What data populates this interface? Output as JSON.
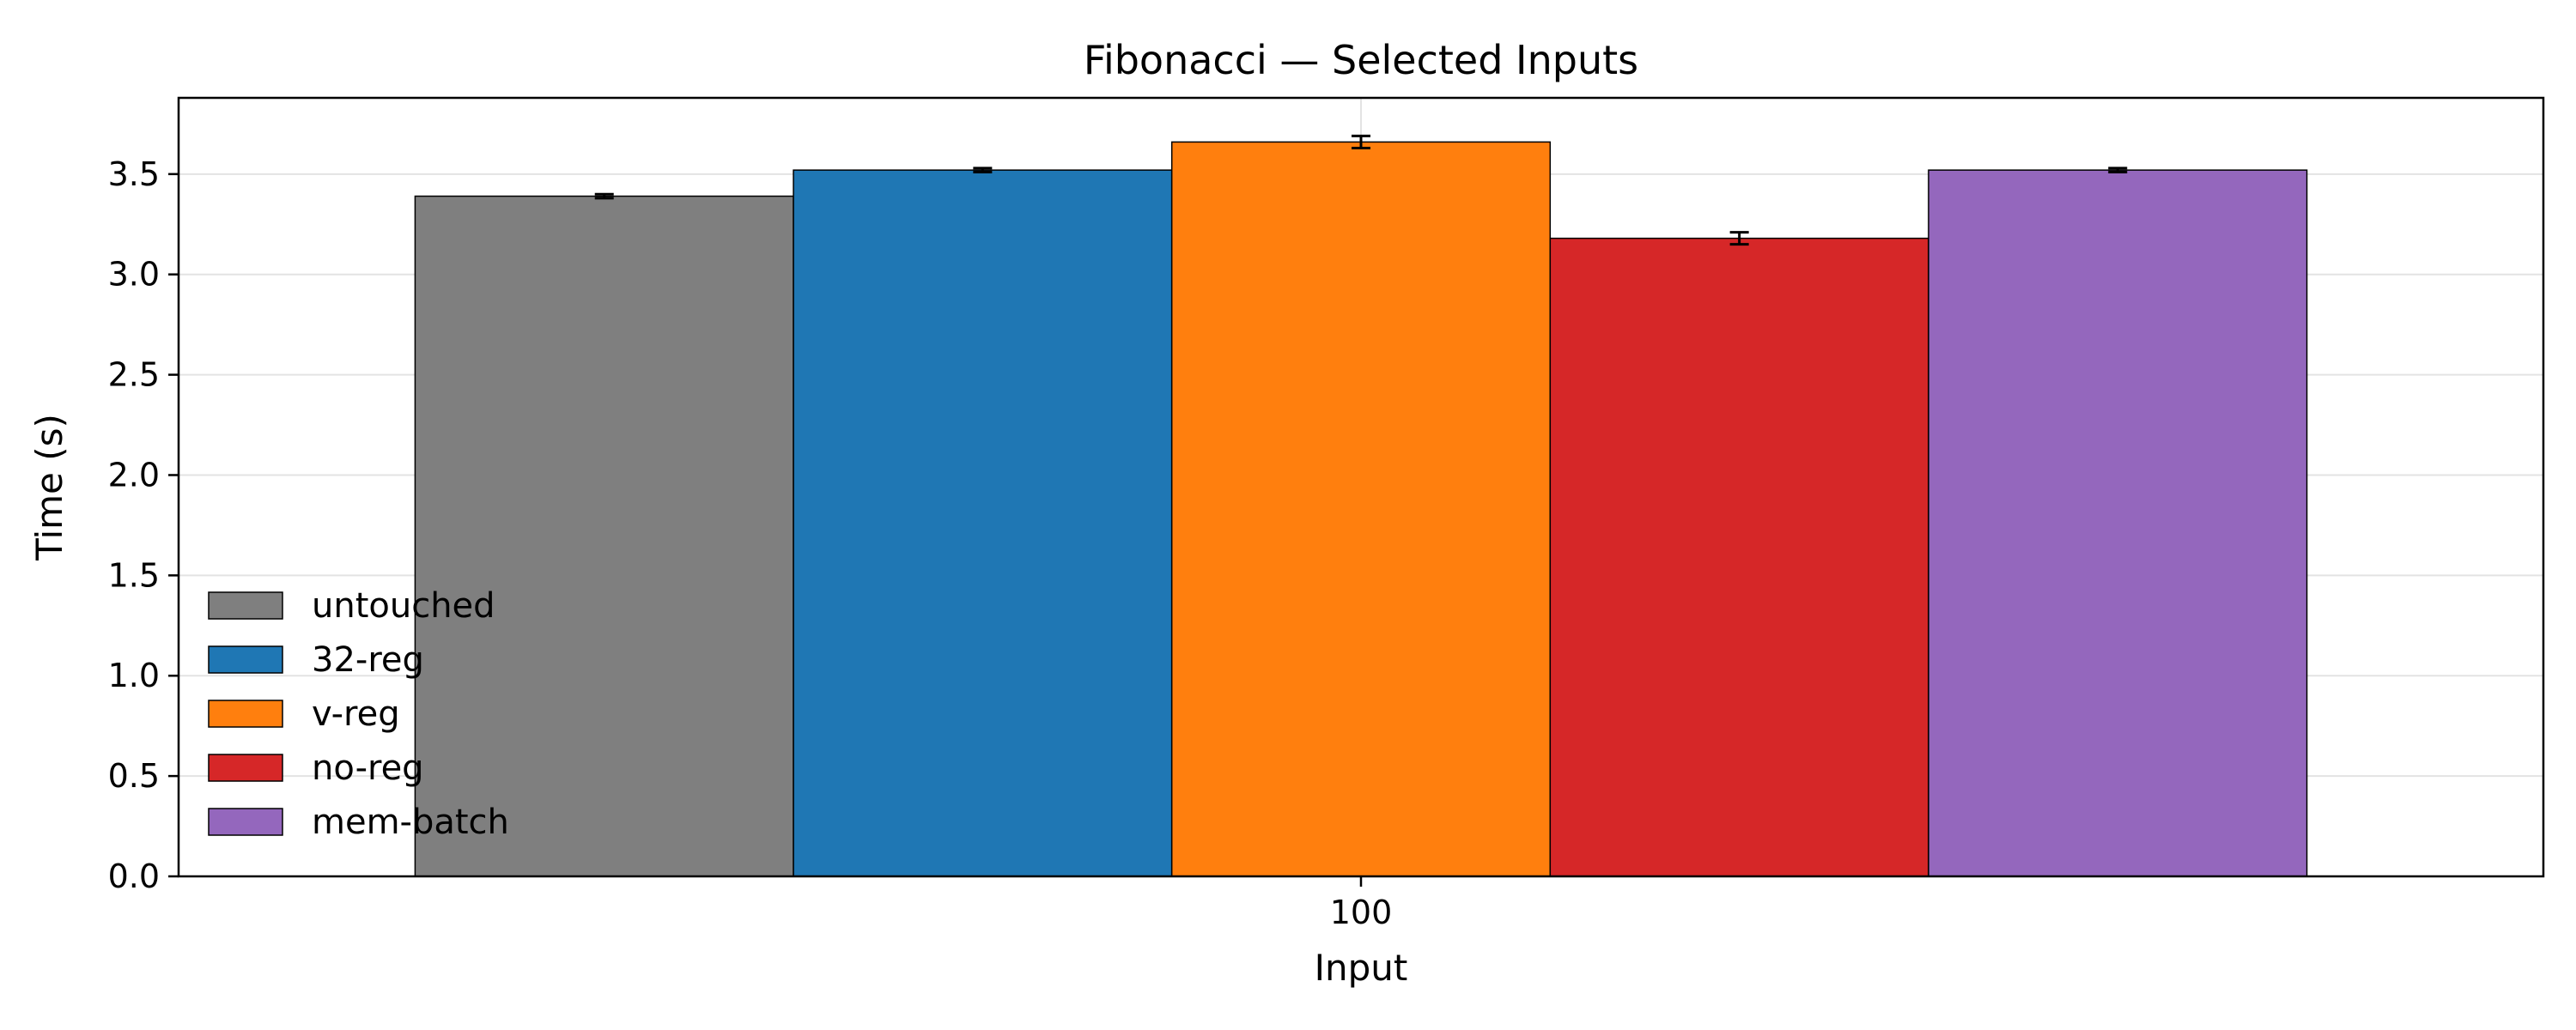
{
  "chart_data": {
    "type": "bar",
    "title": "Fibonacci — Selected Inputs",
    "xlabel": "Input",
    "ylabel": "Time (s)",
    "categories": [
      "100"
    ],
    "ylim": [
      0,
      3.88
    ],
    "yticks": [
      "0.0",
      "0.5",
      "1.0",
      "1.5",
      "2.0",
      "2.5",
      "3.0",
      "3.5"
    ],
    "grid": true,
    "legend_position": "lower-left",
    "series": [
      {
        "name": "untouched",
        "color": "#7f7f7f",
        "values": [
          3.39
        ],
        "errors": [
          0.01
        ]
      },
      {
        "name": "32-reg",
        "color": "#1f77b4",
        "values": [
          3.52
        ],
        "errors": [
          0.01
        ]
      },
      {
        "name": "v-reg",
        "color": "#ff7f0e",
        "values": [
          3.66
        ],
        "errors": [
          0.03
        ]
      },
      {
        "name": "no-reg",
        "color": "#d62728",
        "values": [
          3.18
        ],
        "errors": [
          0.03
        ]
      },
      {
        "name": "mem-batch",
        "color": "#9467bd",
        "values": [
          3.52
        ],
        "errors": [
          0.01
        ]
      }
    ]
  }
}
